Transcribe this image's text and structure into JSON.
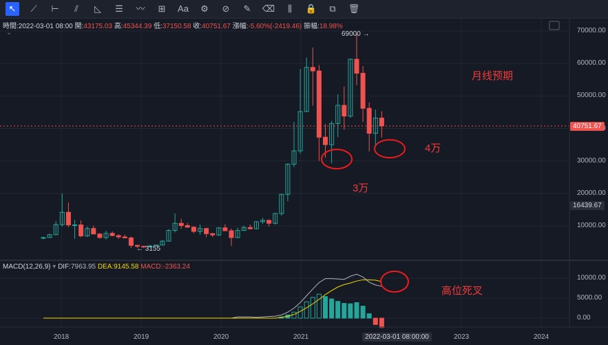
{
  "toolbar": {
    "tools": [
      {
        "name": "cursor-icon",
        "glyph": "↖"
      },
      {
        "name": "trend-line-icon",
        "glyph": "⟋"
      },
      {
        "name": "horizontal-line-icon",
        "glyph": "⊢"
      },
      {
        "name": "parallel-channel-icon",
        "glyph": "⫽"
      },
      {
        "name": "triangle-icon",
        "glyph": "◺"
      },
      {
        "name": "text-lines-icon",
        "glyph": "☰"
      },
      {
        "name": "wave-icon",
        "glyph": "〰"
      },
      {
        "name": "plus-box-icon",
        "glyph": "⊞"
      },
      {
        "name": "text-icon",
        "glyph": "Aa"
      },
      {
        "name": "pattern-icon",
        "glyph": "⚙"
      },
      {
        "name": "fib-icon",
        "glyph": "⊘"
      },
      {
        "name": "brush-icon",
        "glyph": "✎"
      },
      {
        "name": "eraser-icon",
        "glyph": "⌫"
      },
      {
        "name": "candle-icon",
        "glyph": "⫼"
      },
      {
        "name": "lock-icon",
        "glyph": "🔒"
      },
      {
        "name": "copy-icon",
        "glyph": "⧉"
      },
      {
        "name": "trash-icon",
        "glyph": "🗑"
      }
    ]
  },
  "ohlc": {
    "time_label": "時間:",
    "time": "2022-03-01 08:00",
    "open_label": "開:",
    "open": "43175.03",
    "high_label": "高:",
    "high": "45344.39",
    "low_label": "低:",
    "low": "37150.58",
    "close_label": "收:",
    "close": "40751.67",
    "change_label": "漲幅:",
    "change": "-5.60%(-2419.46)",
    "amp_label": "振幅:",
    "amp": "18.98%"
  },
  "price_axis": {
    "ticks": [
      "70000.00",
      "60000.00",
      "50000.00",
      "40000.00",
      "30000.00",
      "20000.00",
      "10000.00"
    ],
    "current_price": "40751.67",
    "marker_price": "16439.67"
  },
  "macd_axis": {
    "ticks": [
      "10000.00",
      "5000.00",
      "0.00"
    ]
  },
  "time_axis": {
    "ticks": [
      "2018",
      "2019",
      "2020",
      "2021",
      "2023",
      "2024"
    ],
    "cursor_label": "2022-03-01 08:00:00"
  },
  "labels": {
    "high_mark": "69000",
    "low_mark": "3155"
  },
  "macd_legend": {
    "name": "MACD(12,26,9)",
    "dif_label": "DIF:",
    "dif": "7963.95",
    "dea_label": "DEA:",
    "dea": "9145.58",
    "macd_label": "MACD:",
    "macd": "-2363.24"
  },
  "annotations": {
    "monthly_outlook": "月线预期",
    "level_4w": "4万",
    "level_3w": "3万",
    "death_cross": "高位死叉"
  },
  "colors": {
    "up": "#26a69a",
    "down": "#ef5350",
    "dif": "#b2b5be",
    "dea": "#f5d700",
    "annotation": "#ef3b3b"
  },
  "chart_data": {
    "type": "candlestick",
    "interval": "monthly",
    "candles": [
      {
        "o": 6300,
        "h": 6700,
        "l": 5900,
        "c": 6400
      },
      {
        "o": 6400,
        "h": 7500,
        "l": 6300,
        "c": 7300
      },
      {
        "o": 7300,
        "h": 11500,
        "l": 7200,
        "c": 10400
      },
      {
        "o": 10400,
        "h": 20000,
        "l": 9800,
        "c": 14200
      },
      {
        "o": 14200,
        "h": 17200,
        "l": 9600,
        "c": 10300
      },
      {
        "o": 10300,
        "h": 11800,
        "l": 6000,
        "c": 10300
      },
      {
        "o": 10300,
        "h": 11700,
        "l": 6500,
        "c": 6900
      },
      {
        "o": 6900,
        "h": 9800,
        "l": 6600,
        "c": 9200
      },
      {
        "o": 9200,
        "h": 10000,
        "l": 7600,
        "c": 7500
      },
      {
        "o": 7500,
        "h": 7800,
        "l": 6100,
        "c": 6400
      },
      {
        "o": 6400,
        "h": 8500,
        "l": 5800,
        "c": 7700
      },
      {
        "o": 7700,
        "h": 8300,
        "l": 6800,
        "c": 7000
      },
      {
        "o": 7000,
        "h": 7400,
        "l": 6000,
        "c": 6600
      },
      {
        "o": 6600,
        "h": 7300,
        "l": 6200,
        "c": 6300
      },
      {
        "o": 6300,
        "h": 6700,
        "l": 3200,
        "c": 4000
      },
      {
        "o": 4000,
        "h": 4200,
        "l": 3200,
        "c": 3700
      },
      {
        "o": 3700,
        "h": 3900,
        "l": 3200,
        "c": 3500
      },
      {
        "o": 3500,
        "h": 4200,
        "l": 3400,
        "c": 3800
      },
      {
        "o": 3800,
        "h": 4100,
        "l": 3700,
        "c": 4100
      },
      {
        "o": 4100,
        "h": 5600,
        "l": 4000,
        "c": 5300
      },
      {
        "o": 5300,
        "h": 9000,
        "l": 5200,
        "c": 8600
      },
      {
        "o": 8600,
        "h": 13800,
        "l": 8000,
        "c": 10800
      },
      {
        "o": 10800,
        "h": 12200,
        "l": 9100,
        "c": 10100
      },
      {
        "o": 10100,
        "h": 10900,
        "l": 9400,
        "c": 9600
      },
      {
        "o": 9600,
        "h": 9900,
        "l": 7700,
        "c": 8300
      },
      {
        "o": 8300,
        "h": 10400,
        "l": 7300,
        "c": 9200
      },
      {
        "o": 9200,
        "h": 9400,
        "l": 6500,
        "c": 7600
      },
      {
        "o": 7600,
        "h": 7800,
        "l": 6600,
        "c": 7200
      },
      {
        "o": 7200,
        "h": 9600,
        "l": 6900,
        "c": 9400
      },
      {
        "o": 9400,
        "h": 10500,
        "l": 8400,
        "c": 8500
      },
      {
        "o": 8500,
        "h": 9200,
        "l": 3800,
        "c": 6400
      },
      {
        "o": 6400,
        "h": 9500,
        "l": 6200,
        "c": 8600
      },
      {
        "o": 8600,
        "h": 10100,
        "l": 8600,
        "c": 9500
      },
      {
        "o": 9500,
        "h": 10400,
        "l": 8900,
        "c": 9100
      },
      {
        "o": 9100,
        "h": 11400,
        "l": 9000,
        "c": 11300
      },
      {
        "o": 11300,
        "h": 12500,
        "l": 10600,
        "c": 11700
      },
      {
        "o": 11700,
        "h": 12000,
        "l": 9800,
        "c": 10800
      },
      {
        "o": 10800,
        "h": 14000,
        "l": 10400,
        "c": 13800
      },
      {
        "o": 13800,
        "h": 19900,
        "l": 13200,
        "c": 19700
      },
      {
        "o": 19700,
        "h": 29300,
        "l": 17600,
        "c": 29000
      },
      {
        "o": 29000,
        "h": 42000,
        "l": 28100,
        "c": 33100
      },
      {
        "o": 33100,
        "h": 58300,
        "l": 32300,
        "c": 45200
      },
      {
        "o": 45200,
        "h": 61800,
        "l": 45000,
        "c": 58800
      },
      {
        "o": 58800,
        "h": 64900,
        "l": 47000,
        "c": 57700
      },
      {
        "o": 57700,
        "h": 59500,
        "l": 30000,
        "c": 37300
      },
      {
        "o": 37300,
        "h": 41300,
        "l": 31000,
        "c": 35000
      },
      {
        "o": 35000,
        "h": 42300,
        "l": 29300,
        "c": 41500
      },
      {
        "o": 41500,
        "h": 50500,
        "l": 37300,
        "c": 47100
      },
      {
        "o": 47100,
        "h": 52900,
        "l": 39600,
        "c": 43800
      },
      {
        "o": 43800,
        "h": 61500,
        "l": 43300,
        "c": 61300
      },
      {
        "o": 61300,
        "h": 69000,
        "l": 53300,
        "c": 57000
      },
      {
        "o": 57000,
        "h": 59200,
        "l": 42000,
        "c": 46200
      },
      {
        "o": 46200,
        "h": 48000,
        "l": 32900,
        "c": 38500
      },
      {
        "o": 38500,
        "h": 45800,
        "l": 34300,
        "c": 43200
      },
      {
        "o": 43200,
        "h": 45300,
        "l": 37200,
        "c": 40750
      }
    ],
    "macd": {
      "hist": [
        0,
        0,
        0,
        0,
        0,
        0,
        0,
        0,
        0,
        0,
        0,
        0,
        0,
        0,
        0,
        0,
        0,
        0,
        0,
        0,
        0,
        0,
        0,
        0,
        0,
        0,
        0,
        0,
        0,
        0,
        0,
        0,
        0,
        0,
        0,
        0,
        0,
        0,
        300,
        800,
        1500,
        2800,
        4100,
        5200,
        6000,
        5400,
        4800,
        4200,
        3700,
        3600,
        3900,
        3000,
        1100,
        -1600,
        -2363
      ],
      "dif": [
        0,
        0,
        0,
        0,
        0,
        0,
        0,
        0,
        0,
        0,
        0,
        0,
        0,
        0,
        0,
        0,
        0,
        0,
        0,
        0,
        0,
        0,
        0,
        0,
        0,
        0,
        0,
        0,
        0,
        0,
        0,
        300,
        300,
        300,
        200,
        300,
        400,
        500,
        800,
        1500,
        2500,
        3900,
        5600,
        7300,
        8900,
        9900,
        9900,
        9800,
        9700,
        10500,
        11000,
        10300,
        9000,
        8300,
        7964
      ],
      "dea": [
        0,
        0,
        0,
        0,
        0,
        0,
        0,
        0,
        0,
        0,
        0,
        0,
        0,
        0,
        0,
        0,
        0,
        0,
        0,
        0,
        0,
        0,
        0,
        0,
        0,
        0,
        0,
        0,
        0,
        0,
        0,
        0,
        0,
        0,
        0,
        0,
        0,
        0,
        200,
        500,
        900,
        1700,
        2600,
        3600,
        4700,
        5900,
        6900,
        7800,
        8400,
        8800,
        9300,
        9600,
        9600,
        9500,
        9146
      ]
    }
  }
}
